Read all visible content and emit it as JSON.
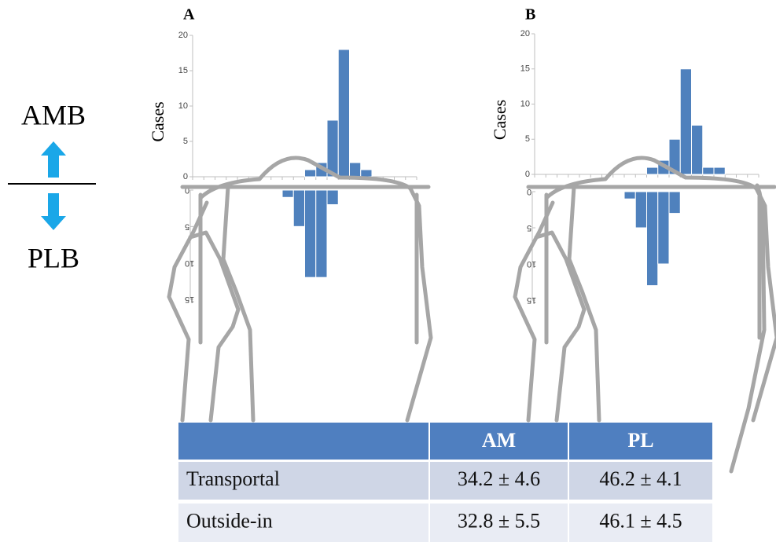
{
  "labels": {
    "top": "AMB",
    "bottom": "PLB"
  },
  "chart_data": [
    {
      "type": "bar",
      "title": "A",
      "y_label": "Cases",
      "categories": [
        null,
        null,
        null,
        null,
        null,
        null,
        null,
        null,
        null,
        null,
        null,
        null,
        null,
        null,
        null,
        null,
        null,
        null,
        null,
        null
      ],
      "series": [
        {
          "color": "#4f81bd",
          "values": [
            0,
            0,
            0,
            0,
            0,
            0,
            0,
            0,
            0,
            0,
            1,
            2,
            8,
            18,
            2,
            1,
            0,
            0,
            0,
            0
          ]
        },
        {
          "color": "#4f81bd",
          "axis": "y2",
          "values": [
            0,
            0,
            0,
            0,
            0,
            0,
            0,
            0,
            1,
            5,
            12,
            12,
            2,
            0,
            0,
            0,
            0,
            0,
            0,
            0
          ]
        }
      ],
      "ylim": [
        0,
        20
      ],
      "yticks": [
        0,
        5,
        10,
        15,
        20
      ],
      "y2lim": [
        0,
        15
      ],
      "y2ticks": [
        0,
        5,
        10,
        15
      ]
    },
    {
      "type": "bar",
      "title": "B",
      "y_label": "Cases",
      "categories": [
        null,
        null,
        null,
        null,
        null,
        null,
        null,
        null,
        null,
        null,
        null,
        null,
        null,
        null,
        null,
        null,
        null,
        null,
        null,
        null
      ],
      "series": [
        {
          "color": "#4f81bd",
          "values": [
            0,
            0,
            0,
            0,
            0,
            0,
            0,
            0,
            0,
            0,
            1,
            2,
            5,
            15,
            7,
            1,
            1,
            0,
            0,
            0
          ]
        },
        {
          "color": "#4f81bd",
          "axis": "y2",
          "values": [
            0,
            0,
            0,
            0,
            0,
            0,
            0,
            0,
            1,
            5,
            13,
            10,
            3,
            0,
            0,
            0,
            0,
            0,
            0,
            0
          ]
        }
      ],
      "ylim": [
        0,
        20
      ],
      "yticks": [
        0,
        5,
        10,
        15,
        20
      ],
      "y2lim": [
        0,
        15
      ],
      "y2ticks": [
        0,
        5,
        10,
        15
      ]
    }
  ],
  "table": {
    "header": [
      "AM",
      "PL"
    ],
    "rows": [
      [
        "Transportal",
        "34.2 ± 4.6",
        "46.2 ± 4.1"
      ],
      [
        "Outside-in",
        "32.8 ± 5.5",
        "46.1 ± 4.5"
      ]
    ]
  }
}
